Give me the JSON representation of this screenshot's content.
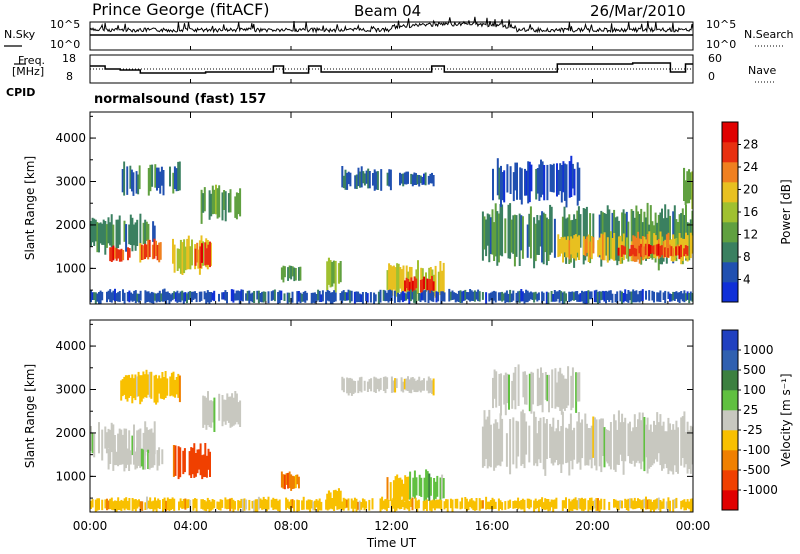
{
  "header": {
    "title": "Prince George (fitACF)",
    "beam": "Beam 04",
    "date": "26/Mar/2010"
  },
  "top_panels": {
    "nsky_label": "N.Sky",
    "nsearch_label": "N.Search",
    "nsky_ticks": [
      "10^5",
      "10^0"
    ],
    "nsearch_ticks": [
      "10^5",
      "10^0"
    ],
    "freq_label": "Freq.",
    "freq_unit": "[MHz]",
    "freq_ticks": [
      "18",
      "8"
    ],
    "nave_label": "Nave",
    "nave_ticks": [
      "60",
      "0"
    ],
    "cpid_label": "CPID",
    "cpid_text": "normalsound (fast) 157"
  },
  "colors": {
    "power_scale": [
      "#1030d8",
      "#2050b0",
      "#3a8060",
      "#60a040",
      "#a0c030",
      "#e8c020",
      "#f08020",
      "#e83010",
      "#e00000"
    ],
    "velocity_scale": [
      "#2040c0",
      "#3060b0",
      "#3c8040",
      "#60c040",
      "#c8c8c0",
      "#f8c000",
      "#f08000",
      "#f04000",
      "#e00000"
    ]
  },
  "chart_data": [
    {
      "type": "heatmap",
      "name": "power",
      "ylabel": "Slant Range [km]",
      "ylim": [
        180,
        4600
      ],
      "yticks": [
        "1000",
        "2000",
        "3000",
        "4000"
      ],
      "colorbar": {
        "label": "Power [dB]",
        "ticks": [
          "4",
          "8",
          "12",
          "16",
          "20",
          "24",
          "28"
        ],
        "range": [
          0,
          32
        ]
      },
      "regions": [
        {
          "t0": 0.0,
          "t1": 2.6,
          "r0": 1400,
          "r1": 2200,
          "level": 10
        },
        {
          "t0": 0.7,
          "t1": 1.6,
          "r0": 1150,
          "r1": 1500,
          "level": 26
        },
        {
          "t0": 1.9,
          "t1": 2.9,
          "r0": 1150,
          "r1": 1650,
          "level": 24
        },
        {
          "t0": 3.2,
          "t1": 4.9,
          "r0": 900,
          "r1": 1700,
          "level": 18
        },
        {
          "t0": 4.1,
          "t1": 4.8,
          "r0": 1000,
          "r1": 1600,
          "level": 26
        },
        {
          "t0": 4.4,
          "t1": 6.0,
          "r0": 2100,
          "r1": 2900,
          "level": 12
        },
        {
          "t0": 2.3,
          "t1": 3.6,
          "r0": 2700,
          "r1": 3400,
          "level": 9
        },
        {
          "t0": 1.2,
          "t1": 2.0,
          "r0": 2600,
          "r1": 3400,
          "level": 8
        },
        {
          "t0": 7.6,
          "t1": 8.4,
          "r0": 700,
          "r1": 1100,
          "level": 12
        },
        {
          "t0": 9.4,
          "t1": 10.0,
          "r0": 500,
          "r1": 1300,
          "level": 14
        },
        {
          "t0": 10.0,
          "t1": 12.0,
          "r0": 2800,
          "r1": 3300,
          "level": 7
        },
        {
          "t0": 12.3,
          "t1": 13.7,
          "r0": 2900,
          "r1": 3200,
          "level": 6
        },
        {
          "t0": 11.8,
          "t1": 14.1,
          "r0": 300,
          "r1": 1100,
          "level": 18
        },
        {
          "t0": 12.5,
          "t1": 13.7,
          "r0": 450,
          "r1": 800,
          "level": 28
        },
        {
          "t0": 15.6,
          "t1": 24.0,
          "r0": 1100,
          "r1": 2400,
          "level": 10
        },
        {
          "t0": 18.6,
          "t1": 24.0,
          "r0": 1150,
          "r1": 1800,
          "level": 20
        },
        {
          "t0": 21.0,
          "t1": 23.8,
          "r0": 1250,
          "r1": 1550,
          "level": 26
        },
        {
          "t0": 16.0,
          "t1": 19.5,
          "r0": 2500,
          "r1": 3500,
          "level": 5
        },
        {
          "t0": 23.6,
          "t1": 24.0,
          "r0": 2400,
          "r1": 3300,
          "level": 14
        },
        {
          "t0": 0.0,
          "t1": 24.0,
          "r0": 200,
          "r1": 500,
          "level": 6
        }
      ]
    },
    {
      "type": "heatmap",
      "name": "velocity",
      "ylabel": "Slant Range [km]",
      "ylim": [
        180,
        4600
      ],
      "yticks": [
        "1000",
        "2000",
        "3000",
        "4000"
      ],
      "colorbar": {
        "label": "Velocity [m s⁻¹]",
        "ticks": [
          "1000",
          "500",
          "100",
          "25",
          "-25",
          "-100",
          "-500",
          "-1000"
        ]
      },
      "regions": [
        {
          "t0": 0.0,
          "t1": 2.6,
          "r0": 1400,
          "r1": 2200,
          "level": 4
        },
        {
          "t0": 0.7,
          "t1": 2.9,
          "r0": 1150,
          "r1": 1650,
          "level": 4
        },
        {
          "t0": 3.3,
          "t1": 4.8,
          "r0": 900,
          "r1": 1700,
          "level": 7
        },
        {
          "t0": 4.4,
          "t1": 6.0,
          "r0": 2100,
          "r1": 2900,
          "level": 4
        },
        {
          "t0": 1.2,
          "t1": 3.6,
          "r0": 2700,
          "r1": 3400,
          "level": 5
        },
        {
          "t0": 7.6,
          "t1": 8.4,
          "r0": 700,
          "r1": 1100,
          "level": 6
        },
        {
          "t0": 9.4,
          "t1": 10.0,
          "r0": 300,
          "r1": 700,
          "level": 5
        },
        {
          "t0": 10.0,
          "t1": 13.7,
          "r0": 2900,
          "r1": 3300,
          "level": 4
        },
        {
          "t0": 11.8,
          "t1": 12.7,
          "r0": 350,
          "r1": 1000,
          "level": 5
        },
        {
          "t0": 12.7,
          "t1": 14.1,
          "r0": 400,
          "r1": 1100,
          "level": 3
        },
        {
          "t0": 15.6,
          "t1": 24.0,
          "r0": 1100,
          "r1": 2400,
          "level": 4
        },
        {
          "t0": 16.0,
          "t1": 19.5,
          "r0": 2500,
          "r1": 3500,
          "level": 4
        },
        {
          "t0": 0.0,
          "t1": 24.0,
          "r0": 200,
          "r1": 500,
          "level": 5
        }
      ]
    }
  ],
  "x_axis": {
    "label": "Time UT",
    "ticks": [
      "00:00",
      "04:00",
      "08:00",
      "12:00",
      "16:00",
      "20:00",
      "00:00"
    ],
    "xlim": [
      0,
      24
    ]
  }
}
